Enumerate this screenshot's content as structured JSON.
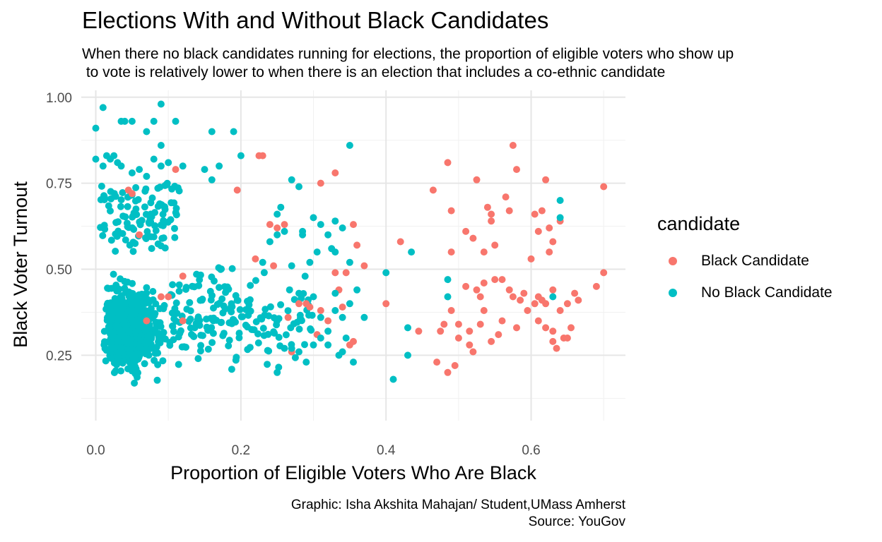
{
  "title": "Elections With and Without Black Candidates",
  "subtitle": "When there no black candidates running for elections, the proportion of eligible voters who show up\n to vote is relatively lower to when there is an election that includes a co-ethnic candidate",
  "caption": {
    "line1": "Graphic: Isha Akshita Mahajan/ Student,UMass Amherst",
    "line2": "Source: YouGov"
  },
  "legend": {
    "title": "candidate",
    "items": [
      {
        "label": "Black Candidate",
        "color": "#F8766D"
      },
      {
        "label": "No Black Candidate",
        "color": "#00BFC4"
      }
    ]
  },
  "chart_data": {
    "type": "scatter",
    "xlabel": "Proportion of Eligible Voters Who Are Black",
    "ylabel": "Black Voter Turnout",
    "xlim": [
      -0.02,
      0.73
    ],
    "ylim": [
      0.06,
      1.02
    ],
    "xticks": [
      0.0,
      0.2,
      0.4,
      0.6
    ],
    "xtick_labels": [
      "0.0",
      "0.2",
      "0.4",
      "0.6"
    ],
    "yticks": [
      0.25,
      0.5,
      0.75,
      1.0
    ],
    "ytick_labels": [
      "0.25",
      "0.50",
      "0.75",
      "1.00"
    ],
    "grid": true,
    "legend_position": "right",
    "series": [
      {
        "name": "Black Candidate",
        "color": "#F8766D",
        "points": [
          [
            0.045,
            0.73
          ],
          [
            0.05,
            0.72
          ],
          [
            0.06,
            0.6
          ],
          [
            0.07,
            0.35
          ],
          [
            0.09,
            0.42
          ],
          [
            0.11,
            0.79
          ],
          [
            0.12,
            0.35
          ],
          [
            0.12,
            0.48
          ],
          [
            0.1,
            0.42
          ],
          [
            0.195,
            0.73
          ],
          [
            0.22,
            0.53
          ],
          [
            0.225,
            0.83
          ],
          [
            0.23,
            0.83
          ],
          [
            0.24,
            0.63
          ],
          [
            0.245,
            0.51
          ],
          [
            0.25,
            0.62
          ],
          [
            0.26,
            0.63
          ],
          [
            0.27,
            0.26
          ],
          [
            0.265,
            0.36
          ],
          [
            0.28,
            0.4
          ],
          [
            0.29,
            0.4
          ],
          [
            0.295,
            0.39
          ],
          [
            0.305,
            0.31
          ],
          [
            0.31,
            0.38
          ],
          [
            0.31,
            0.75
          ],
          [
            0.32,
            0.35
          ],
          [
            0.33,
            0.78
          ],
          [
            0.33,
            0.49
          ],
          [
            0.335,
            0.44
          ],
          [
            0.34,
            0.39
          ],
          [
            0.345,
            0.49
          ],
          [
            0.35,
            0.28
          ],
          [
            0.355,
            0.29
          ],
          [
            0.355,
            0.63
          ],
          [
            0.36,
            0.57
          ],
          [
            0.37,
            0.51
          ],
          [
            0.4,
            0.4
          ],
          [
            0.42,
            0.58
          ],
          [
            0.445,
            0.32
          ],
          [
            0.465,
            0.73
          ],
          [
            0.47,
            0.23
          ],
          [
            0.475,
            0.32
          ],
          [
            0.48,
            0.34
          ],
          [
            0.485,
            0.2
          ],
          [
            0.485,
            0.81
          ],
          [
            0.49,
            0.67
          ],
          [
            0.49,
            0.55
          ],
          [
            0.49,
            0.38
          ],
          [
            0.495,
            0.22
          ],
          [
            0.5,
            0.3
          ],
          [
            0.5,
            0.34
          ],
          [
            0.51,
            0.45
          ],
          [
            0.51,
            0.61
          ],
          [
            0.515,
            0.28
          ],
          [
            0.52,
            0.59
          ],
          [
            0.52,
            0.26
          ],
          [
            0.525,
            0.76
          ],
          [
            0.53,
            0.34
          ],
          [
            0.535,
            0.38
          ],
          [
            0.535,
            0.46
          ],
          [
            0.54,
            0.68
          ],
          [
            0.545,
            0.66
          ],
          [
            0.545,
            0.64
          ],
          [
            0.55,
            0.57
          ],
          [
            0.55,
            0.47
          ],
          [
            0.555,
            0.31
          ],
          [
            0.56,
            0.35
          ],
          [
            0.56,
            0.47
          ],
          [
            0.565,
            0.71
          ],
          [
            0.57,
            0.44
          ],
          [
            0.57,
            0.67
          ],
          [
            0.575,
            0.86
          ],
          [
            0.58,
            0.79
          ],
          [
            0.585,
            0.41
          ],
          [
            0.59,
            0.43
          ],
          [
            0.595,
            0.38
          ],
          [
            0.6,
            0.53
          ],
          [
            0.605,
            0.66
          ],
          [
            0.61,
            0.61
          ],
          [
            0.61,
            0.35
          ],
          [
            0.615,
            0.67
          ],
          [
            0.62,
            0.33
          ],
          [
            0.62,
            0.76
          ],
          [
            0.625,
            0.62
          ],
          [
            0.63,
            0.58
          ],
          [
            0.63,
            0.29
          ],
          [
            0.635,
            0.27
          ],
          [
            0.64,
            0.64
          ],
          [
            0.645,
            0.3
          ],
          [
            0.65,
            0.3
          ],
          [
            0.655,
            0.33
          ],
          [
            0.66,
            0.43
          ],
          [
            0.665,
            0.41
          ],
          [
            0.69,
            0.45
          ],
          [
            0.7,
            0.49
          ],
          [
            0.7,
            0.74
          ],
          [
            0.61,
            0.42
          ],
          [
            0.615,
            0.41
          ],
          [
            0.62,
            0.4
          ],
          [
            0.63,
            0.44
          ],
          [
            0.65,
            0.4
          ],
          [
            0.575,
            0.42
          ],
          [
            0.58,
            0.33
          ],
          [
            0.605,
            0.4
          ],
          [
            0.625,
            0.55
          ],
          [
            0.535,
            0.55
          ],
          [
            0.515,
            0.32
          ],
          [
            0.53,
            0.42
          ],
          [
            0.545,
            0.29
          ],
          [
            0.525,
            0.44
          ],
          [
            0.63,
            0.32
          ],
          [
            0.64,
            0.38
          ]
        ]
      },
      {
        "name": "No Black Candidate",
        "color": "#00BFC4",
        "points": [
          [
            0.0,
            0.91
          ],
          [
            0.01,
            0.97
          ],
          [
            0.035,
            0.93
          ],
          [
            0.04,
            0.93
          ],
          [
            0.05,
            0.93
          ],
          [
            0.07,
            0.9
          ],
          [
            0.08,
            0.93
          ],
          [
            0.09,
            0.86
          ],
          [
            0.09,
            0.98
          ],
          [
            0.11,
            0.93
          ],
          [
            0.16,
            0.9
          ],
          [
            0.19,
            0.9
          ],
          [
            0.35,
            0.86
          ],
          [
            0.0,
            0.82
          ],
          [
            0.01,
            0.8
          ],
          [
            0.015,
            0.83
          ],
          [
            0.02,
            0.82
          ],
          [
            0.025,
            0.83
          ],
          [
            0.03,
            0.81
          ],
          [
            0.035,
            0.8
          ],
          [
            0.05,
            0.78
          ],
          [
            0.06,
            0.79
          ],
          [
            0.07,
            0.77
          ],
          [
            0.08,
            0.82
          ],
          [
            0.09,
            0.8
          ],
          [
            0.1,
            0.81
          ],
          [
            0.12,
            0.8
          ],
          [
            0.15,
            0.79
          ],
          [
            0.17,
            0.8
          ],
          [
            0.2,
            0.83
          ],
          [
            0.16,
            0.76
          ],
          [
            0.27,
            0.76
          ],
          [
            0.28,
            0.74
          ],
          [
            0.285,
            0.61
          ],
          [
            0.3,
            0.65
          ],
          [
            0.31,
            0.63
          ],
          [
            0.32,
            0.6
          ],
          [
            0.325,
            0.56
          ],
          [
            0.33,
            0.64
          ],
          [
            0.33,
            0.55
          ],
          [
            0.34,
            0.62
          ],
          [
            0.35,
            0.52
          ],
          [
            0.36,
            0.44
          ],
          [
            0.37,
            0.36
          ],
          [
            0.23,
            0.52
          ],
          [
            0.24,
            0.58
          ],
          [
            0.25,
            0.6
          ],
          [
            0.25,
            0.66
          ],
          [
            0.255,
            0.68
          ],
          [
            0.26,
            0.61
          ],
          [
            0.27,
            0.51
          ],
          [
            0.28,
            0.43
          ],
          [
            0.285,
            0.6
          ],
          [
            0.295,
            0.52
          ],
          [
            0.3,
            0.42
          ],
          [
            0.305,
            0.55
          ],
          [
            0.31,
            0.36
          ],
          [
            0.32,
            0.32
          ],
          [
            0.33,
            0.38
          ],
          [
            0.34,
            0.36
          ],
          [
            0.35,
            0.4
          ],
          [
            0.355,
            0.23
          ],
          [
            0.33,
            0.43
          ],
          [
            0.345,
            0.3
          ],
          [
            0.25,
            0.2
          ],
          [
            0.26,
            0.27
          ],
          [
            0.27,
            0.27
          ],
          [
            0.28,
            0.26
          ],
          [
            0.29,
            0.23
          ],
          [
            0.3,
            0.28
          ],
          [
            0.31,
            0.3
          ],
          [
            0.32,
            0.28
          ],
          [
            0.335,
            0.25
          ],
          [
            0.34,
            0.26
          ],
          [
            0.4,
            0.49
          ],
          [
            0.41,
            0.18
          ],
          [
            0.43,
            0.33
          ],
          [
            0.43,
            0.25
          ],
          [
            0.435,
            0.55
          ],
          [
            0.485,
            0.47
          ],
          [
            0.485,
            0.42
          ],
          [
            0.63,
            0.42
          ],
          [
            0.64,
            0.65
          ],
          [
            0.64,
            0.7
          ]
        ]
      }
    ]
  }
}
